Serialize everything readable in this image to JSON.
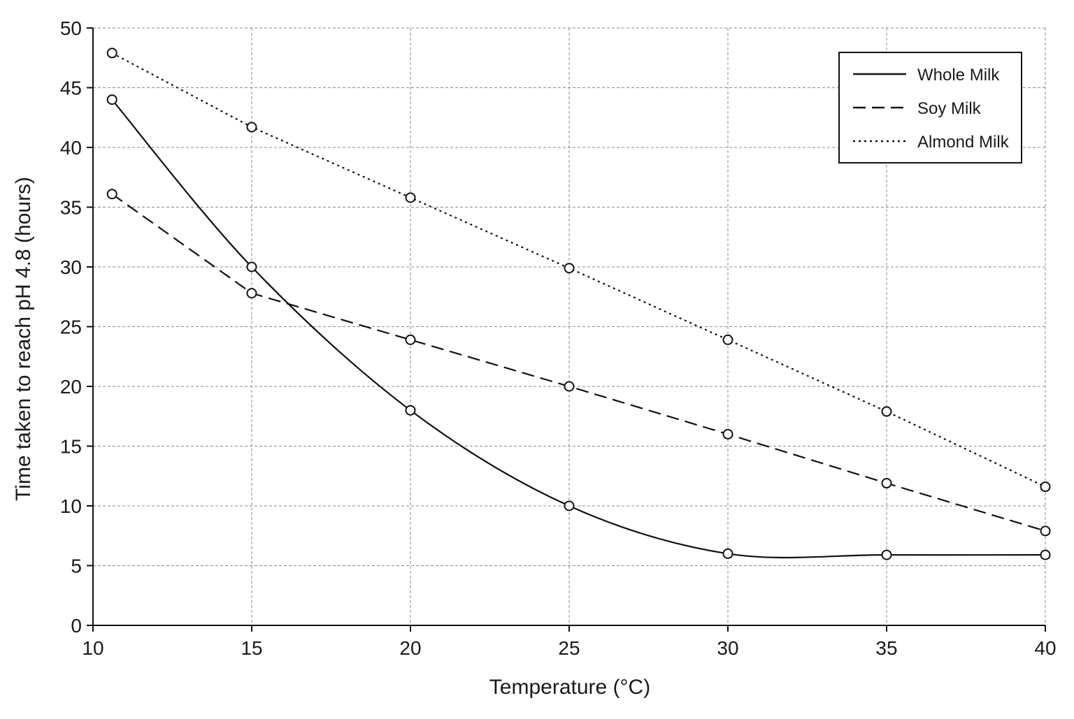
{
  "chart_data": {
    "type": "line",
    "title": "",
    "xlabel": "Temperature (°C)",
    "ylabel": "Time taken to reach pH 4.8 (hours)",
    "xlim": [
      10,
      40
    ],
    "ylim": [
      0,
      50
    ],
    "xticks": [
      10,
      15,
      20,
      25,
      30,
      35,
      40
    ],
    "yticks": [
      0,
      5,
      10,
      15,
      20,
      25,
      30,
      35,
      40,
      45,
      50
    ],
    "grid": true,
    "legend_position": "top-right",
    "marker": "open-circle",
    "series": [
      {
        "name": "Whole Milk",
        "line_style": "solid",
        "color": "#111111",
        "x": [
          10.6,
          15,
          20,
          25,
          30,
          35,
          40
        ],
        "y": [
          44,
          30,
          18,
          10,
          6,
          5.9,
          5.9
        ]
      },
      {
        "name": "Soy Milk",
        "line_style": "dashed",
        "color": "#111111",
        "x": [
          10.6,
          15,
          20,
          25,
          30,
          35,
          40
        ],
        "y": [
          36.1,
          27.8,
          23.9,
          20,
          16,
          11.9,
          7.9
        ]
      },
      {
        "name": "Almond Milk",
        "line_style": "dotted",
        "color": "#111111",
        "x": [
          10.6,
          15,
          20,
          25,
          30,
          35,
          40
        ],
        "y": [
          47.9,
          41.7,
          35.8,
          29.9,
          23.9,
          17.9,
          11.6
        ]
      }
    ]
  }
}
